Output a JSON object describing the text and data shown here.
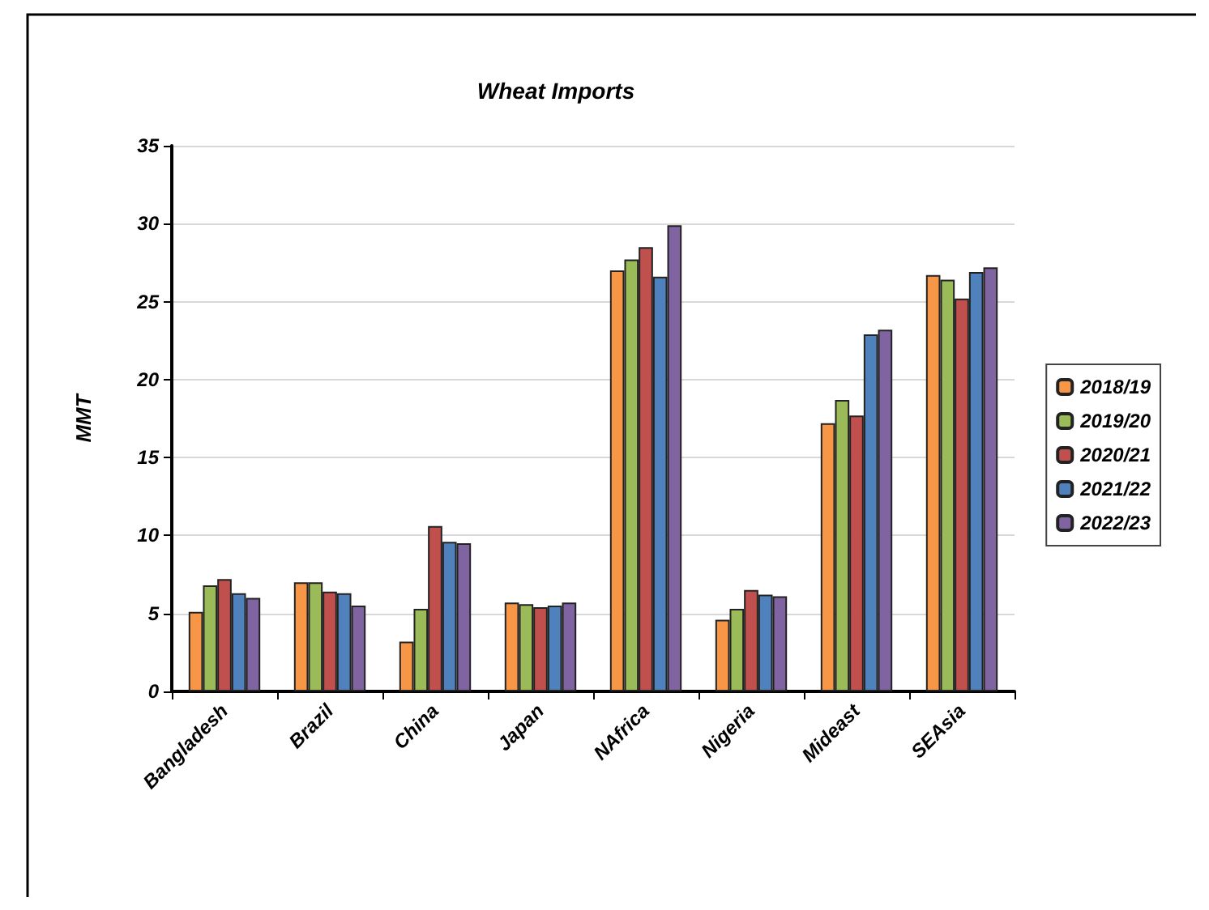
{
  "chart_data": {
    "type": "bar",
    "title": "Wheat Imports",
    "ylabel": "MMT",
    "categories": [
      "Bangladesh",
      "Brazil",
      "China",
      "Japan",
      "NAfrica",
      "Nigeria",
      "Mideast",
      "SEAsia"
    ],
    "series": [
      {
        "name": "2018/19",
        "color": "#f79646",
        "values": [
          5.1,
          7.0,
          3.2,
          5.7,
          27.0,
          4.6,
          17.2,
          26.7
        ]
      },
      {
        "name": "2019/20",
        "color": "#9bbb59",
        "values": [
          6.8,
          7.0,
          5.3,
          5.6,
          27.7,
          5.3,
          18.7,
          26.4
        ]
      },
      {
        "name": "2020/21",
        "color": "#c0504d",
        "values": [
          7.2,
          6.4,
          10.6,
          5.4,
          28.5,
          6.5,
          17.7,
          25.2
        ]
      },
      {
        "name": "2021/22",
        "color": "#4f81bd",
        "values": [
          6.3,
          6.3,
          9.6,
          5.5,
          26.6,
          6.2,
          22.9,
          26.9
        ]
      },
      {
        "name": "2022/23",
        "color": "#8064a2",
        "values": [
          6.0,
          5.5,
          9.5,
          5.7,
          29.9,
          6.1,
          23.2,
          27.2
        ]
      }
    ],
    "ylim": [
      0,
      35
    ],
    "yticks": [
      0,
      5,
      10,
      15,
      20,
      25,
      30,
      35
    ],
    "grid": "y",
    "legend": "right"
  }
}
